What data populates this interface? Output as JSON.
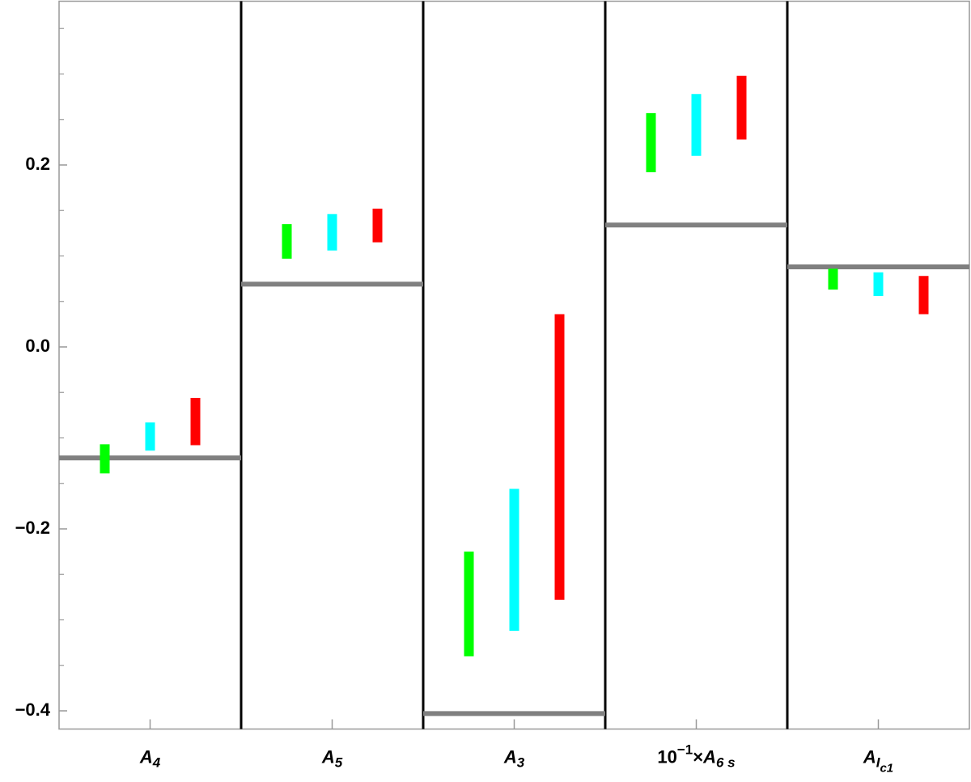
{
  "chart_data": {
    "type": "range-bars",
    "categories": [
      [
        {
          "t": "A",
          "pos": "base"
        },
        {
          "t": "4",
          "pos": "sub"
        }
      ],
      [
        {
          "t": "A",
          "pos": "base"
        },
        {
          "t": "5",
          "pos": "sub"
        }
      ],
      [
        {
          "t": "A",
          "pos": "base"
        },
        {
          "t": "3",
          "pos": "sub"
        }
      ],
      [
        {
          "t": "10",
          "pos": "base"
        },
        {
          "t": "−1",
          "pos": "sup"
        },
        {
          "t": "×",
          "pos": "base"
        },
        {
          "t": "A",
          "pos": "base"
        },
        {
          "t": "6 s",
          "pos": "sub"
        }
      ],
      [
        {
          "t": "A",
          "pos": "base"
        },
        {
          "t": "I",
          "pos": "sub"
        },
        {
          "t": "c1",
          "pos": "subsub"
        }
      ]
    ],
    "reference": {
      "color": "#808080",
      "values": [
        -0.122,
        0.069,
        -0.403,
        0.134,
        0.088
      ]
    },
    "series": [
      {
        "color": "#00ff00",
        "low": [
          -0.139,
          0.097,
          -0.34,
          0.192,
          0.063
        ],
        "high": [
          -0.107,
          0.135,
          -0.225,
          0.257,
          0.086
        ]
      },
      {
        "color": "#00ffff",
        "low": [
          -0.114,
          0.106,
          -0.312,
          0.21,
          0.056
        ],
        "high": [
          -0.083,
          0.146,
          -0.156,
          0.278,
          0.082
        ]
      },
      {
        "color": "#ff0000",
        "low": [
          -0.108,
          0.115,
          -0.278,
          0.228,
          0.036
        ],
        "high": [
          -0.056,
          0.152,
          0.036,
          0.298,
          0.078
        ]
      }
    ],
    "ylim": [
      -0.42,
      0.38
    ],
    "yticks": [
      {
        "value": -0.4,
        "label": "−0.4"
      },
      {
        "value": -0.2,
        "label": "−0.2"
      },
      {
        "value": 0,
        "label": "0.0"
      },
      {
        "value": 0.2,
        "label": "0.2"
      }
    ],
    "yminor_ticks": [
      -0.35,
      -0.3,
      -0.25,
      -0.15,
      -0.1,
      -0.05,
      0.05,
      0.1,
      0.15,
      0.25,
      0.3,
      0.35
    ]
  }
}
